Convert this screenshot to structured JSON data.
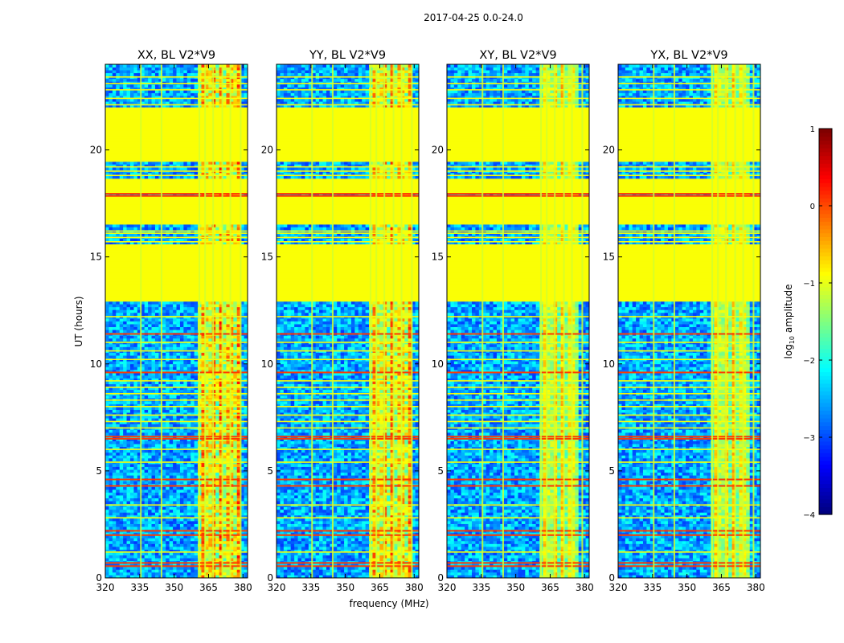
{
  "chart_data": {
    "type": "heatmap",
    "suptitle": "2017-04-25 0.0-24.0",
    "xlabel": "frequency (MHz)",
    "ylabel": "UT (hours)",
    "xlim": [
      320,
      382
    ],
    "ylim": [
      0,
      24
    ],
    "xticks": [
      "320",
      "335",
      "350",
      "365",
      "380"
    ],
    "yticks": [
      "0",
      "5",
      "10",
      "15",
      "20"
    ],
    "panels": [
      {
        "title": "XX, BL V2*V9",
        "pol": "XX",
        "strong_band_mhz": [
          360,
          379
        ],
        "hot_level": 0.55
      },
      {
        "title": "YY, BL V2*V9",
        "pol": "YY",
        "strong_band_mhz": [
          360,
          379
        ],
        "hot_level": 0.5
      },
      {
        "title": "XY, BL V2*V9",
        "pol": "XY",
        "strong_band_mhz": [
          360,
          377
        ],
        "hot_level": 0.3
      },
      {
        "title": "YX, BL V2*V9",
        "pol": "YX",
        "strong_band_mhz": [
          360,
          377
        ],
        "hot_level": 0.3
      }
    ],
    "flagged_ut_ranges": [
      [
        13.0,
        15.6
      ],
      [
        16.5,
        17.8
      ],
      [
        18.0,
        18.6
      ],
      [
        19.5,
        22.0
      ]
    ],
    "colorbar": {
      "label_prefix": "log",
      "label_sub": "10",
      "label_suffix": " amplitude",
      "range": [
        -4,
        1
      ],
      "ticks": [
        "1",
        "0",
        "−1",
        "−2",
        "−3",
        "−4"
      ],
      "colormap": "jet"
    }
  }
}
